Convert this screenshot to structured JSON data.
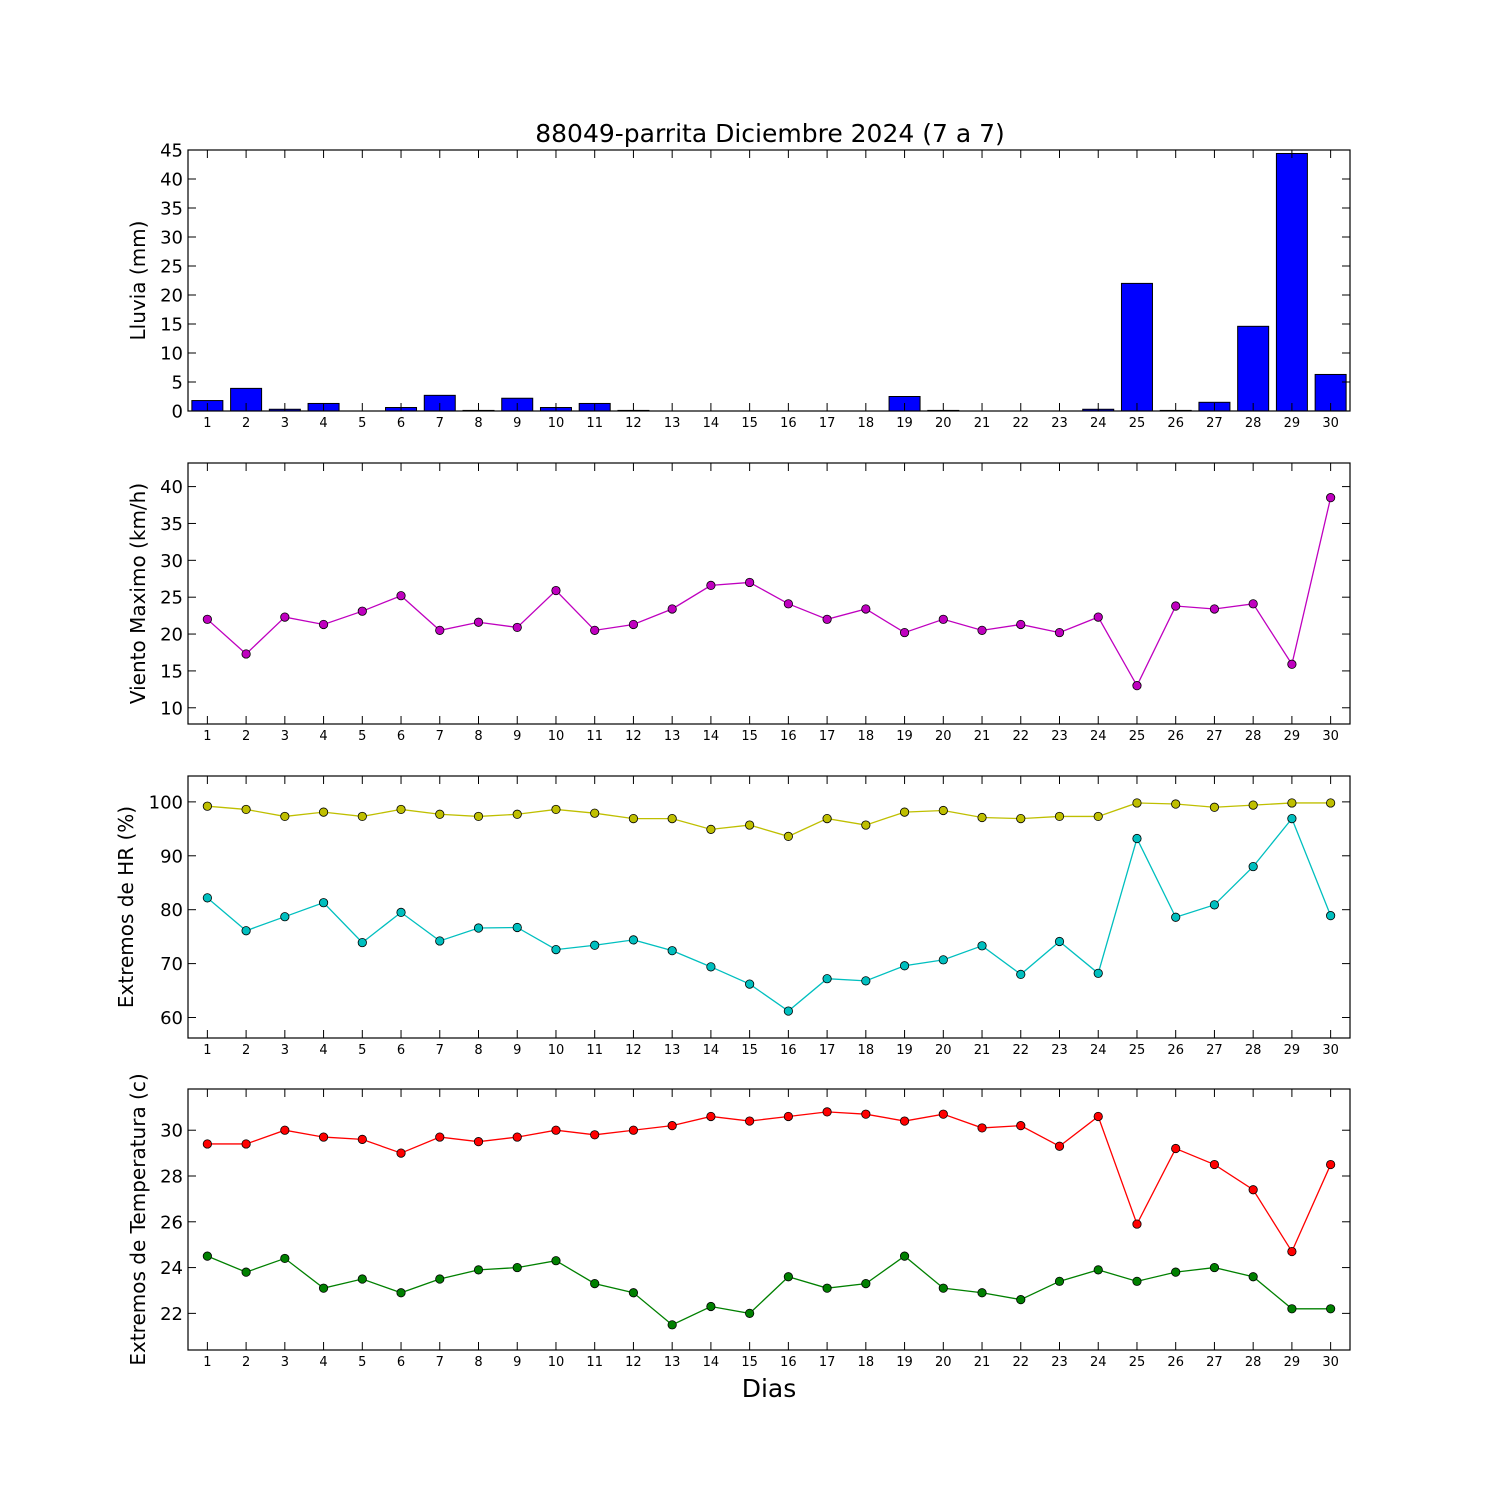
{
  "title": "88049-parrita Diciembre 2024  (7 a 7)",
  "xlabel": "Dias",
  "colors": {
    "rain": "#0000ff",
    "wind": "#bf00bf",
    "hr_max": "#bfbf00",
    "hr_min": "#00bfbf",
    "t_max": "#ff0000",
    "t_min": "#008000"
  },
  "chart_data": [
    {
      "type": "bar",
      "ylabel": "Lluvia (mm)",
      "x": [
        1,
        2,
        3,
        4,
        5,
        6,
        7,
        8,
        9,
        10,
        11,
        12,
        13,
        14,
        15,
        16,
        17,
        18,
        19,
        20,
        21,
        22,
        23,
        24,
        25,
        26,
        27,
        28,
        29,
        30
      ],
      "xlim": [
        0.5,
        30.5
      ],
      "ylim": [
        0,
        45
      ],
      "yticks": [
        0,
        5,
        10,
        15,
        20,
        25,
        30,
        35,
        40,
        45
      ],
      "series": [
        {
          "values": [
            1.8,
            3.9,
            0.3,
            1.3,
            0,
            0.6,
            2.7,
            0.1,
            2.2,
            0.6,
            1.3,
            0.1,
            0,
            0,
            0,
            0,
            0,
            0,
            2.5,
            0.1,
            0,
            0,
            0,
            0.3,
            22,
            0.1,
            1.5,
            14.6,
            44.4,
            6.3
          ]
        }
      ]
    },
    {
      "type": "line",
      "ylabel": "Viento Maximo (km/h)",
      "x": [
        1,
        2,
        3,
        4,
        5,
        6,
        7,
        8,
        9,
        10,
        11,
        12,
        13,
        14,
        15,
        16,
        17,
        18,
        19,
        20,
        21,
        22,
        23,
        24,
        25,
        26,
        27,
        28,
        29,
        30
      ],
      "xlim": [
        0.5,
        30.5
      ],
      "ylim": [
        7.8,
        43.2
      ],
      "yticks": [
        10,
        15,
        20,
        25,
        30,
        35,
        40
      ],
      "series": [
        {
          "values": [
            22,
            17.3,
            22.3,
            21.3,
            23.1,
            25.2,
            20.5,
            21.6,
            20.9,
            25.9,
            20.5,
            21.3,
            23.4,
            26.6,
            27,
            24.1,
            22,
            23.4,
            20.2,
            22,
            20.5,
            21.3,
            20.2,
            22.3,
            13,
            23.8,
            23.4,
            24.1,
            15.9,
            38.5
          ]
        }
      ]
    },
    {
      "type": "line",
      "ylabel": "Extremos de HR (%)",
      "x": [
        1,
        2,
        3,
        4,
        5,
        6,
        7,
        8,
        9,
        10,
        11,
        12,
        13,
        14,
        15,
        16,
        17,
        18,
        19,
        20,
        21,
        22,
        23,
        24,
        25,
        26,
        27,
        28,
        29,
        30
      ],
      "xlim": [
        0.5,
        30.5
      ],
      "ylim": [
        56.2,
        104.8
      ],
      "yticks": [
        60,
        70,
        80,
        90,
        100
      ],
      "series": [
        {
          "values": [
            99.2,
            98.6,
            97.3,
            98.1,
            97.3,
            98.6,
            97.7,
            97.3,
            97.7,
            98.6,
            97.9,
            96.9,
            96.9,
            94.9,
            95.7,
            93.6,
            96.9,
            95.7,
            98.1,
            98.4,
            97.1,
            96.9,
            97.3,
            97.3,
            99.8,
            99.6,
            99,
            99.4,
            99.8,
            99.8
          ]
        },
        {
          "values": [
            82.2,
            76.1,
            78.7,
            81.3,
            73.9,
            79.5,
            74.2,
            76.6,
            76.7,
            72.6,
            73.4,
            74.4,
            72.4,
            69.4,
            66.2,
            61.2,
            67.2,
            66.8,
            69.6,
            70.7,
            73.3,
            68,
            74.1,
            68.2,
            93.2,
            78.6,
            80.9,
            88,
            96.9,
            78.9
          ]
        }
      ]
    },
    {
      "type": "line",
      "ylabel": "Extremos de Temperatura (c)",
      "x": [
        1,
        2,
        3,
        4,
        5,
        6,
        7,
        8,
        9,
        10,
        11,
        12,
        13,
        14,
        15,
        16,
        17,
        18,
        19,
        20,
        21,
        22,
        23,
        24,
        25,
        26,
        27,
        28,
        29,
        30
      ],
      "xlim": [
        0.5,
        30.5
      ],
      "ylim": [
        20.4,
        31.8
      ],
      "yticks": [
        22,
        24,
        26,
        28,
        30
      ],
      "series": [
        {
          "values": [
            29.4,
            29.4,
            30,
            29.7,
            29.6,
            29,
            29.7,
            29.5,
            29.7,
            30,
            29.8,
            30,
            30.2,
            30.6,
            30.4,
            30.6,
            30.8,
            30.7,
            30.4,
            30.7,
            30.1,
            30.2,
            29.3,
            30.6,
            25.9,
            29.2,
            28.5,
            27.4,
            24.7,
            28.5
          ]
        },
        {
          "values": [
            24.5,
            23.8,
            24.4,
            23.1,
            23.5,
            22.9,
            23.5,
            23.9,
            24,
            24.3,
            23.3,
            22.9,
            21.5,
            22.3,
            22,
            23.6,
            23.1,
            23.3,
            24.5,
            23.1,
            22.9,
            22.6,
            23.4,
            23.9,
            23.4,
            23.8,
            24,
            23.6,
            22.2,
            22.2
          ]
        }
      ]
    }
  ]
}
